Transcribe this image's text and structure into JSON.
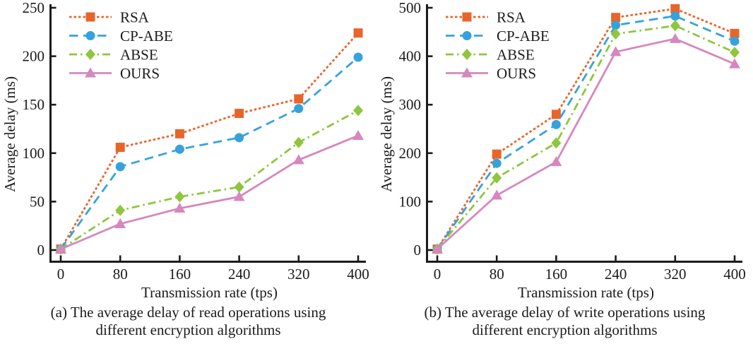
{
  "ink_color": "#1b1b1b",
  "background_color": "#ffffff",
  "chart_data": [
    {
      "type": "line",
      "title": "",
      "xlabel": "Transmission rate (tps)",
      "ylabel": "Average delay (ms)",
      "x": [
        0,
        80,
        160,
        240,
        320,
        400
      ],
      "xticks": [
        0,
        80,
        160,
        240,
        320,
        400
      ],
      "yticks": [
        0,
        50,
        100,
        150,
        200,
        250
      ],
      "xlim": [
        0,
        400
      ],
      "ylim": [
        0,
        250
      ],
      "grid": false,
      "legend_position": "top-left",
      "series": [
        {
          "name": "RSA",
          "color": "#E8652A",
          "line": "dotted",
          "marker": "square",
          "values": [
            1,
            106,
            120,
            141,
            156,
            224
          ]
        },
        {
          "name": "CP-ABE",
          "color": "#36A2DB",
          "line": "dashed",
          "marker": "circle",
          "values": [
            1,
            86,
            104,
            116,
            146,
            199
          ]
        },
        {
          "name": "ABSE",
          "color": "#8EC63F",
          "line": "dashdot",
          "marker": "diamond",
          "values": [
            1,
            41,
            55,
            65,
            111,
            144
          ]
        },
        {
          "name": "OURS",
          "color": "#D687BE",
          "line": "solid",
          "marker": "triangle",
          "values": [
            1,
            27,
            43,
            55,
            93,
            118
          ]
        }
      ],
      "caption": {
        "line1": "(a) The average delay of read operations using",
        "line2": "different encryption algorithms"
      }
    },
    {
      "type": "line",
      "title": "",
      "xlabel": "Transmission rate (tps)",
      "ylabel": "Average delay (ms)",
      "x": [
        0,
        80,
        160,
        240,
        320,
        400
      ],
      "xticks": [
        0,
        80,
        160,
        240,
        320,
        400
      ],
      "yticks": [
        0,
        100,
        200,
        300,
        400,
        500
      ],
      "xlim": [
        0,
        400
      ],
      "ylim": [
        0,
        500
      ],
      "grid": false,
      "legend_position": "top-left",
      "series": [
        {
          "name": "RSA",
          "color": "#E8652A",
          "line": "dotted",
          "marker": "square",
          "values": [
            2,
            198,
            280,
            480,
            498,
            447
          ]
        },
        {
          "name": "CP-ABE",
          "color": "#36A2DB",
          "line": "dashed",
          "marker": "circle",
          "values": [
            2,
            179,
            259,
            464,
            483,
            431
          ]
        },
        {
          "name": "ABSE",
          "color": "#8EC63F",
          "line": "dashdot",
          "marker": "diamond",
          "values": [
            2,
            149,
            221,
            446,
            463,
            408
          ]
        },
        {
          "name": "OURS",
          "color": "#D687BE",
          "line": "solid",
          "marker": "triangle",
          "values": [
            2,
            113,
            182,
            409,
            436,
            384
          ]
        }
      ],
      "caption": {
        "line1": "(b) The average delay of write operations using",
        "line2": "different encryption algorithms"
      }
    }
  ]
}
